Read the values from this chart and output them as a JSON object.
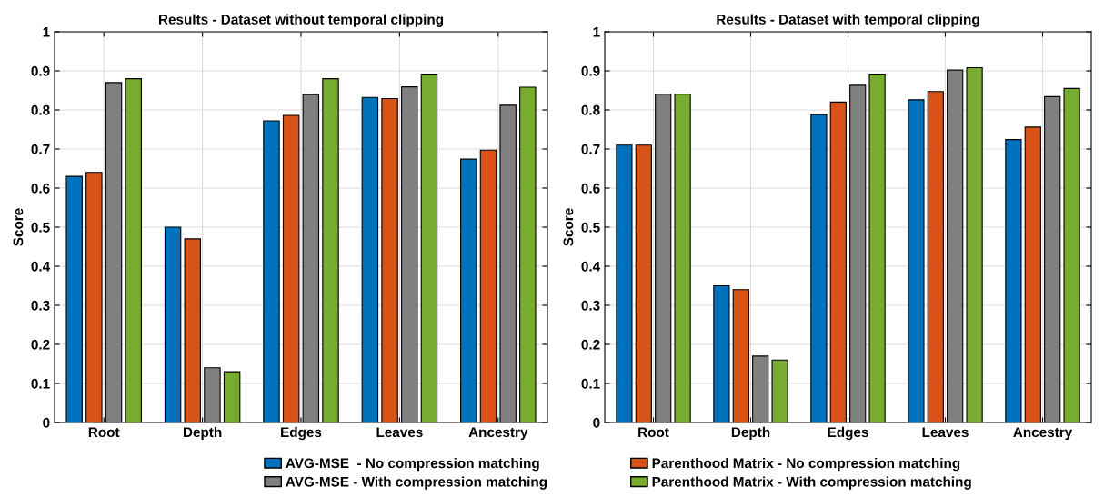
{
  "chart_data": [
    {
      "type": "bar",
      "title": "Results - Dataset without temporal clipping",
      "ylabel": "Score",
      "categories": [
        "Root",
        "Depth",
        "Edges",
        "Leaves",
        "Ancestry"
      ],
      "ylim": [
        0,
        1
      ],
      "yticks": [
        0,
        0.1,
        0.2,
        0.3,
        0.4,
        0.5,
        0.6,
        0.7,
        0.8,
        0.9,
        1
      ],
      "grid": true,
      "legend": "bottom",
      "series": [
        {
          "name": "AVG-MSE  - No compression matching",
          "color": "#0072bd",
          "values": [
            0.63,
            0.5,
            0.772,
            0.832,
            0.674
          ]
        },
        {
          "name": "Parenthood Matrix - No compression matching",
          "color": "#d95319",
          "values": [
            0.64,
            0.47,
            0.786,
            0.829,
            0.697
          ]
        },
        {
          "name": "AVG-MSE - With compression matching",
          "color": "#808080",
          "values": [
            0.87,
            0.14,
            0.839,
            0.859,
            0.812
          ]
        },
        {
          "name": "Parenthood Matrix - With compression matching",
          "color": "#77ac30",
          "values": [
            0.88,
            0.13,
            0.88,
            0.892,
            0.858
          ]
        }
      ]
    },
    {
      "type": "bar",
      "title": "Results - Dataset with temporal clipping",
      "ylabel": "Score",
      "categories": [
        "Root",
        "Depth",
        "Edges",
        "Leaves",
        "Ancestry"
      ],
      "ylim": [
        0,
        1
      ],
      "yticks": [
        0,
        0.1,
        0.2,
        0.3,
        0.4,
        0.5,
        0.6,
        0.7,
        0.8,
        0.9,
        1
      ],
      "grid": true,
      "series": [
        {
          "color": "#0072bd",
          "values": [
            0.71,
            0.35,
            0.788,
            0.826,
            0.724
          ]
        },
        {
          "color": "#d95319",
          "values": [
            0.71,
            0.34,
            0.82,
            0.847,
            0.756
          ]
        },
        {
          "color": "#808080",
          "values": [
            0.84,
            0.17,
            0.863,
            0.902,
            0.834
          ]
        },
        {
          "color": "#77ac30",
          "values": [
            0.84,
            0.16,
            0.892,
            0.908,
            0.855
          ]
        }
      ]
    }
  ]
}
